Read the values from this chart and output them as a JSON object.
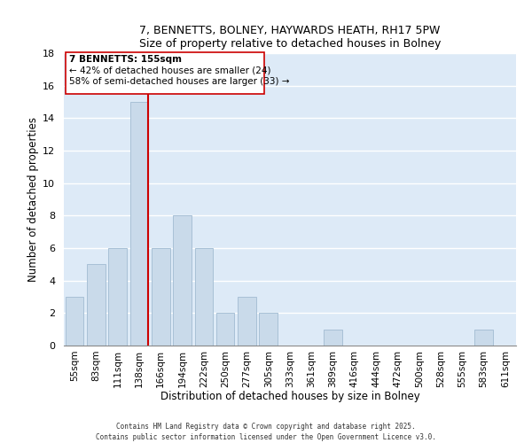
{
  "title": "7, BENNETTS, BOLNEY, HAYWARDS HEATH, RH17 5PW",
  "subtitle": "Size of property relative to detached houses in Bolney",
  "xlabel": "Distribution of detached houses by size in Bolney",
  "ylabel": "Number of detached properties",
  "bin_labels": [
    "55sqm",
    "83sqm",
    "111sqm",
    "138sqm",
    "166sqm",
    "194sqm",
    "222sqm",
    "250sqm",
    "277sqm",
    "305sqm",
    "333sqm",
    "361sqm",
    "389sqm",
    "416sqm",
    "444sqm",
    "472sqm",
    "500sqm",
    "528sqm",
    "555sqm",
    "583sqm",
    "611sqm"
  ],
  "bin_values": [
    3,
    5,
    6,
    15,
    6,
    8,
    6,
    2,
    3,
    2,
    0,
    0,
    1,
    0,
    0,
    0,
    0,
    0,
    0,
    1,
    0
  ],
  "bar_color": "#c9daea",
  "bar_edgecolor": "#a8c0d6",
  "property_line_idx": 3,
  "property_line_color": "#cc0000",
  "ylim": [
    0,
    18
  ],
  "yticks": [
    0,
    2,
    4,
    6,
    8,
    10,
    12,
    14,
    16,
    18
  ],
  "ann_title": "7 BENNETTS: 155sqm",
  "ann_line1": "← 42% of detached houses are smaller (24)",
  "ann_line2": "58% of semi-detached houses are larger (33) →",
  "background_color": "#ddeaf7",
  "grid_color": "#ffffff",
  "footer_line1": "Contains HM Land Registry data © Crown copyright and database right 2025.",
  "footer_line2": "Contains public sector information licensed under the Open Government Licence v3.0."
}
